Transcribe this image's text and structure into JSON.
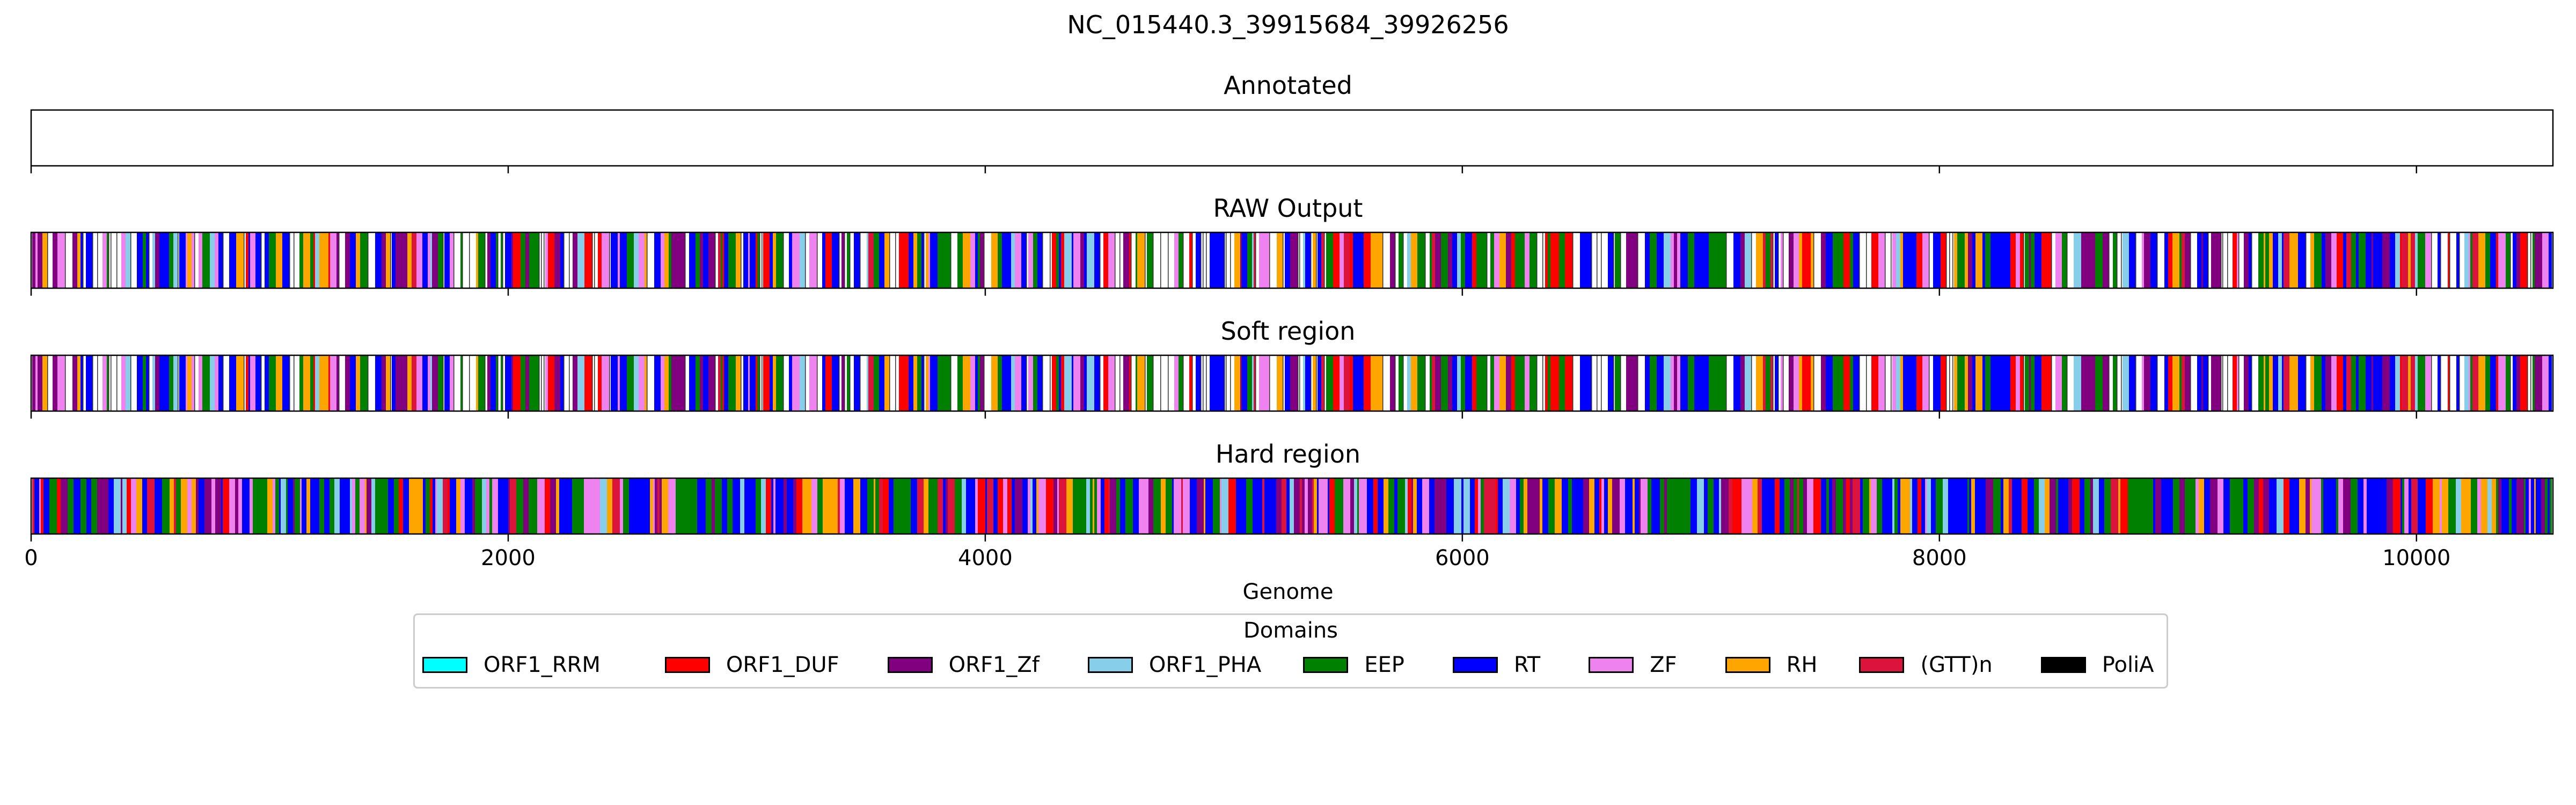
{
  "figure": {
    "title": "NC_015440.3_39915684_39926256",
    "xlabel": "Genome"
  },
  "chart_data": {
    "type": "heatmap",
    "title": "NC_015440.3_39915684_39926256",
    "xlabel": "Genome",
    "xlim": [
      0,
      10572
    ],
    "xticks": [
      0,
      2000,
      4000,
      6000,
      8000,
      10000
    ],
    "grid": false,
    "legend_placement": "bottom-center",
    "panels": [
      {
        "title": "Annotated",
        "segments": []
      },
      {
        "title": "RAW Output",
        "segments": []
      },
      {
        "title": "Soft region",
        "segments": []
      },
      {
        "title": "Hard region",
        "segments": []
      }
    ],
    "pattern_colors": {
      "raw": [
        "#0000ff",
        "#008000",
        "#ffffff",
        "#800080",
        "#ee82ee",
        "#ffffff",
        "#0000ff",
        "#ff0000",
        "#008000",
        "#ffa500",
        "#0000ff",
        "#ffffff",
        "#dc143c",
        "#87ceeb",
        "#0000ff",
        "#008000",
        "#ee82ee",
        "#ffffff",
        "#800080",
        "#0000ff",
        "#ffa500",
        "#ffffff",
        "#ff0000",
        "#008000"
      ],
      "hard": [
        "#0000ff",
        "#008000",
        "#800080",
        "#ee82ee",
        "#0000ff",
        "#ffa500",
        "#008000",
        "#ff0000",
        "#0000ff",
        "#87ceeb",
        "#800080",
        "#008000",
        "#dc143c",
        "#0000ff",
        "#ee82ee",
        "#008000",
        "#ffa500",
        "#0000ff"
      ]
    }
  },
  "legend": {
    "title": "Domains",
    "items": [
      {
        "label": "ORF1_RRM",
        "color": "#00ffff"
      },
      {
        "label": "ORF1_DUF",
        "color": "#ff0000"
      },
      {
        "label": "ORF1_Zf",
        "color": "#800080"
      },
      {
        "label": "ORF1_PHA",
        "color": "#87ceeb"
      },
      {
        "label": "EEP",
        "color": "#008000"
      },
      {
        "label": "RT",
        "color": "#0000ff"
      },
      {
        "label": "ZF",
        "color": "#ee82ee"
      },
      {
        "label": "RH",
        "color": "#ffa500"
      },
      {
        "label": "(GTT)n",
        "color": "#dc143c"
      },
      {
        "label": "PoliA",
        "color": "#000000"
      }
    ]
  }
}
